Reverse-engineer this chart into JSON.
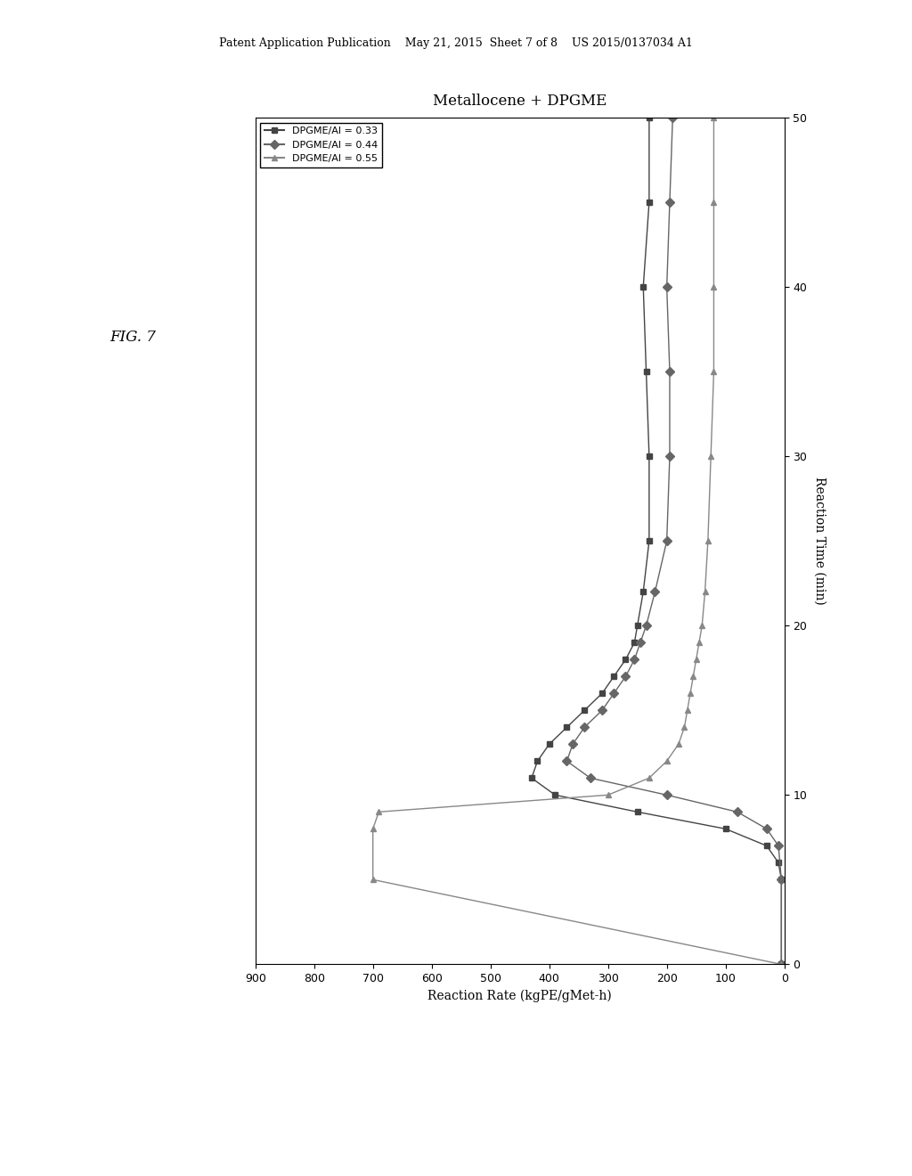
{
  "title": "Metallocene + DPGME",
  "xlabel": "Reaction Time (min)",
  "ylabel": "Reaction Rate (kgPE/gMet-h)",
  "xlim": [
    0,
    50
  ],
  "ylim": [
    0,
    900
  ],
  "yticks": [
    0,
    100,
    200,
    300,
    400,
    500,
    600,
    700,
    800,
    900
  ],
  "xticks": [
    0,
    10,
    20,
    30,
    40,
    50
  ],
  "fig_label": "FIG. 7",
  "legend_labels": [
    "DPGME/Al = 0.33",
    "DPGME/Al = 0.44",
    "DPGME/Al = 0.55"
  ],
  "series": [
    {
      "label": "DPGME/Al = 0.33",
      "color": "#555555",
      "marker": "s",
      "x": [
        0,
        5,
        6,
        7,
        8,
        9,
        10,
        11,
        12,
        13,
        14,
        15,
        16,
        17,
        18,
        19,
        20,
        22,
        25,
        30,
        35,
        40,
        45,
        50
      ],
      "y": [
        5,
        5,
        10,
        30,
        100,
        250,
        390,
        430,
        420,
        400,
        370,
        340,
        310,
        290,
        270,
        255,
        250,
        240,
        230,
        230,
        235,
        240,
        230,
        230
      ]
    },
    {
      "label": "DPGME/Al = 0.44",
      "color": "#777777",
      "marker": "D",
      "x": [
        0,
        5,
        7,
        8,
        9,
        10,
        11,
        12,
        13,
        14,
        15,
        16,
        17,
        18,
        19,
        20,
        22,
        25,
        30,
        35,
        40,
        45,
        50
      ],
      "y": [
        5,
        5,
        10,
        30,
        80,
        200,
        330,
        370,
        360,
        340,
        310,
        290,
        270,
        255,
        245,
        235,
        220,
        200,
        195,
        195,
        200,
        195,
        190
      ]
    },
    {
      "label": "DPGME/Al = 0.55",
      "color": "#999999",
      "marker": "^",
      "x": [
        0,
        5,
        8,
        9,
        10,
        11,
        12,
        13,
        14,
        15,
        16,
        17,
        18,
        19,
        20,
        22,
        25,
        30,
        35,
        40,
        45,
        50
      ],
      "y": [
        5,
        700,
        700,
        690,
        300,
        230,
        200,
        180,
        170,
        165,
        160,
        155,
        150,
        145,
        140,
        135,
        130,
        125,
        120,
        120,
        120,
        120
      ]
    }
  ],
  "background_color": "#ffffff",
  "patent_header": "Patent Application Publication    May 21, 2015  Sheet 7 of 8    US 2015/0137034 A1"
}
